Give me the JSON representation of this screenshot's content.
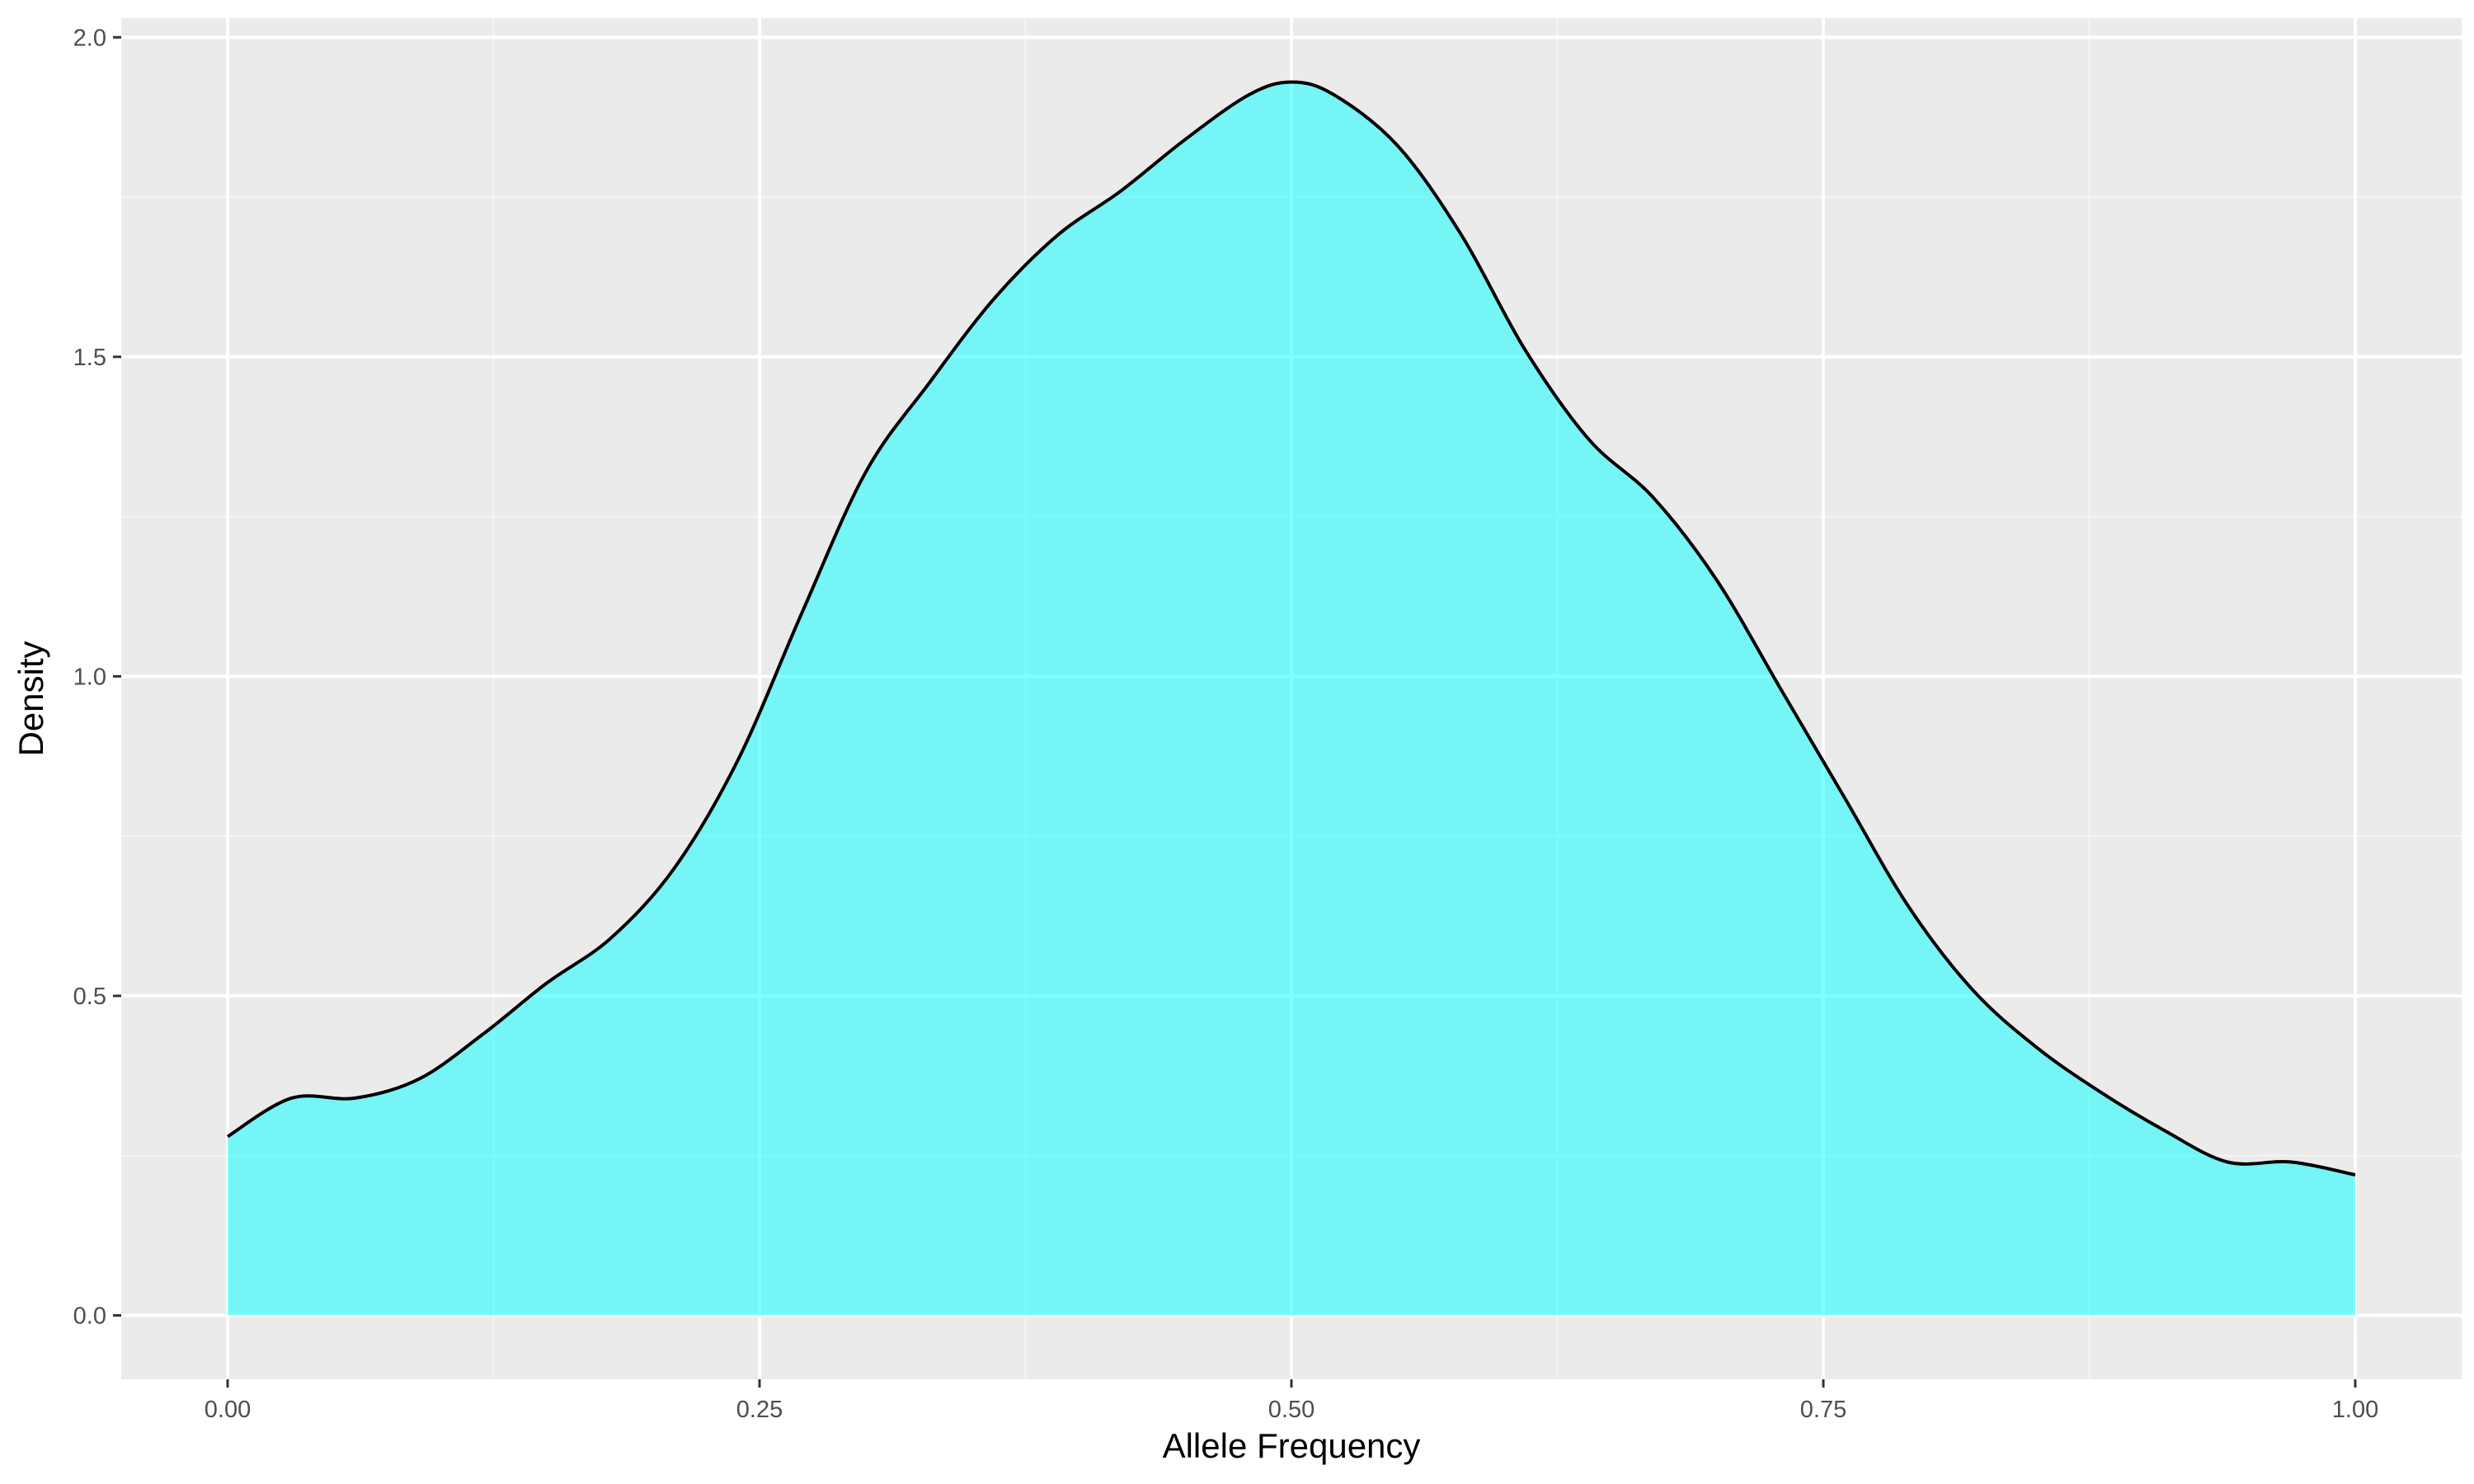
{
  "chart_data": {
    "type": "area",
    "title": "",
    "xlabel": "Allele Frequency",
    "ylabel": "Density",
    "xlim": [
      -0.05,
      1.05
    ],
    "ylim": [
      -0.1,
      2.03
    ],
    "x_ticks": [
      {
        "value": 0.0,
        "label": "0.00"
      },
      {
        "value": 0.25,
        "label": "0.25"
      },
      {
        "value": 0.5,
        "label": "0.50"
      },
      {
        "value": 0.75,
        "label": "0.75"
      },
      {
        "value": 1.0,
        "label": "1.00"
      }
    ],
    "y_ticks": [
      {
        "value": 0.0,
        "label": "0.0"
      },
      {
        "value": 0.5,
        "label": "0.5"
      },
      {
        "value": 1.0,
        "label": "1.0"
      },
      {
        "value": 1.5,
        "label": "1.5"
      },
      {
        "value": 2.0,
        "label": "2.0"
      }
    ],
    "grid": true,
    "legend": "none",
    "series": [
      {
        "fill": "#00ffff",
        "fill_alpha": 0.5,
        "line_color": "#000000",
        "x": [
          0.0,
          0.03,
          0.06,
          0.09,
          0.12,
          0.15,
          0.18,
          0.21,
          0.24,
          0.27,
          0.3,
          0.33,
          0.36,
          0.39,
          0.42,
          0.45,
          0.48,
          0.5,
          0.52,
          0.55,
          0.58,
          0.61,
          0.64,
          0.67,
          0.7,
          0.73,
          0.76,
          0.79,
          0.82,
          0.85,
          0.88,
          0.91,
          0.94,
          0.97,
          1.0
        ],
        "y": [
          0.28,
          0.34,
          0.34,
          0.37,
          0.44,
          0.52,
          0.59,
          0.7,
          0.87,
          1.1,
          1.32,
          1.46,
          1.59,
          1.69,
          1.76,
          1.84,
          1.91,
          1.93,
          1.91,
          1.83,
          1.69,
          1.51,
          1.37,
          1.28,
          1.15,
          0.98,
          0.81,
          0.64,
          0.51,
          0.42,
          0.35,
          0.29,
          0.24,
          0.24,
          0.22
        ]
      }
    ]
  },
  "colors": {
    "panel_background": "#ebebeb",
    "grid_major": "#ffffff",
    "grid_minor": "#f5f5f5",
    "area_fill": "#00ffff",
    "curve_line": "#000000"
  }
}
